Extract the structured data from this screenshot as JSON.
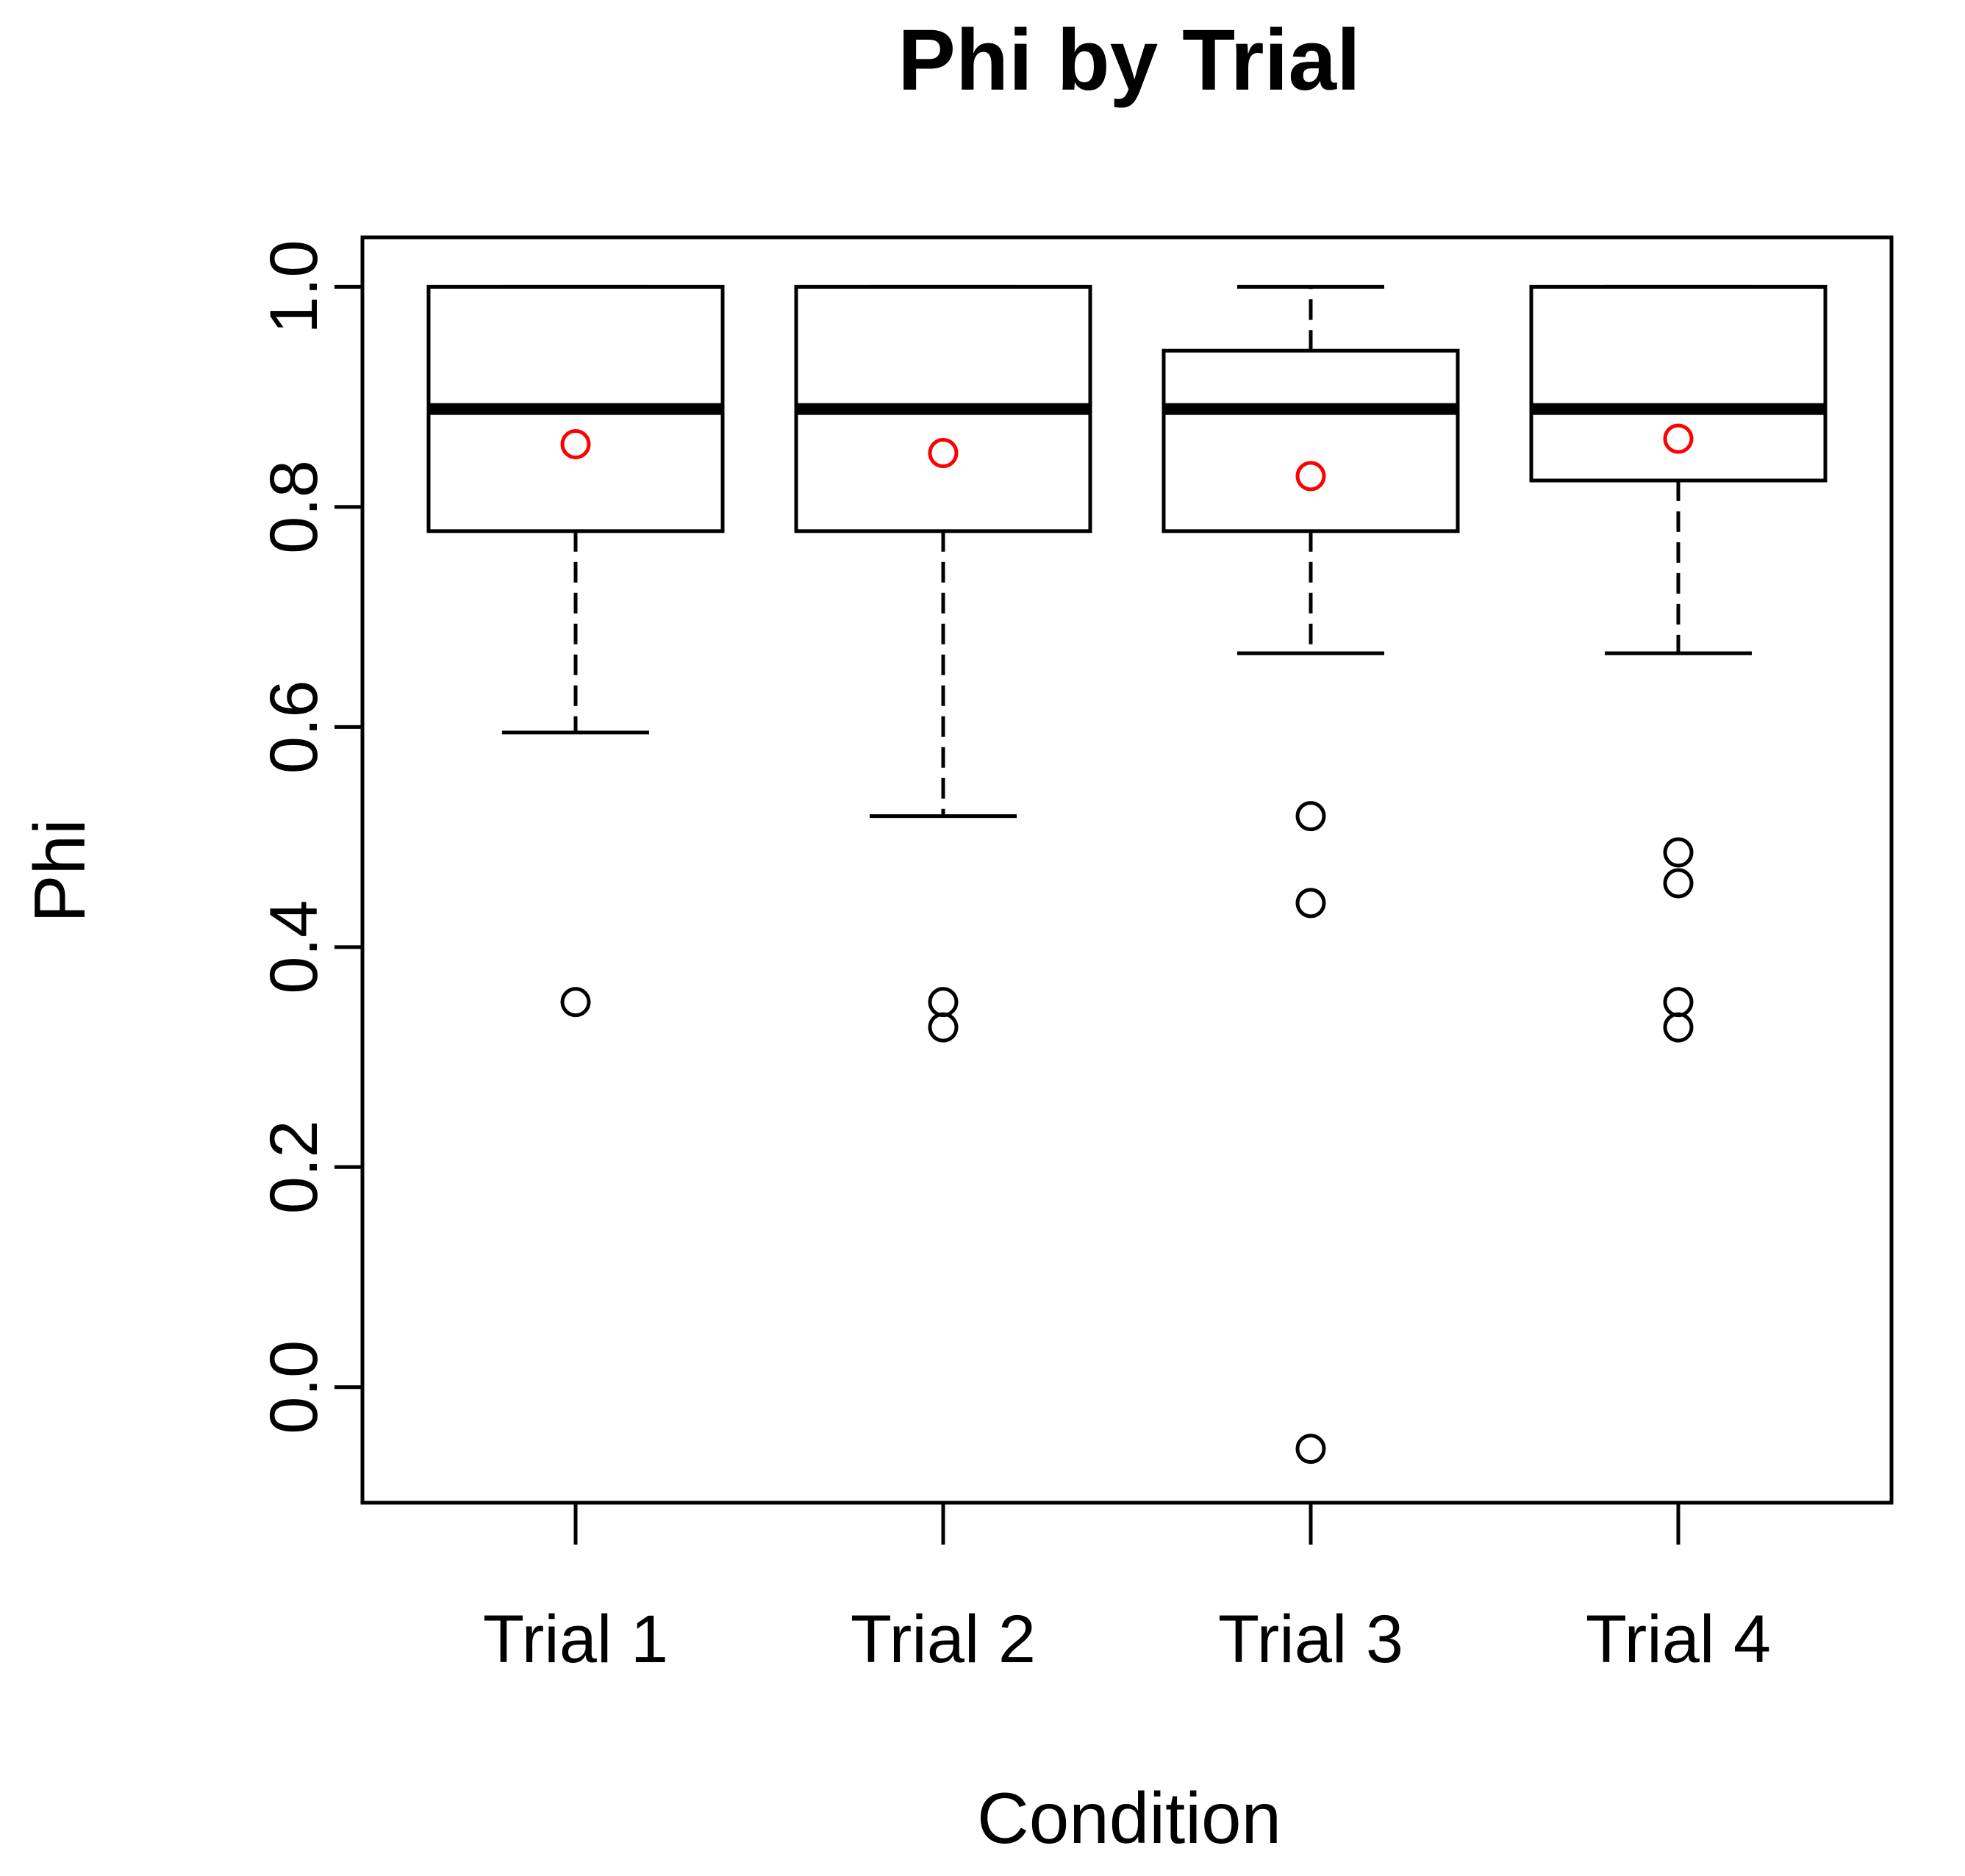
{
  "chart_data": {
    "type": "boxplot",
    "title": "Phi by Trial",
    "xlabel": "Condition",
    "ylabel": "Phi",
    "ylim": [
      -0.105,
      1.045
    ],
    "yticks": [
      0.0,
      0.2,
      0.4,
      0.6,
      0.8,
      1.0
    ],
    "ytick_labels": [
      "0.0",
      "0.2",
      "0.4",
      "0.6",
      "0.8",
      "1.0"
    ],
    "categories": [
      "Trial 1",
      "Trial 2",
      "Trial 3",
      "Trial 4"
    ],
    "boxes": [
      {
        "category": "Trial 1",
        "whisker_low": 0.595,
        "q1": 0.778,
        "median": 0.889,
        "q3": 1.0,
        "whisker_high": 1.0,
        "mean": 0.857,
        "outliers": [
          0.35
        ]
      },
      {
        "category": "Trial 2",
        "whisker_low": 0.519,
        "q1": 0.778,
        "median": 0.889,
        "q3": 1.0,
        "whisker_high": 1.0,
        "mean": 0.849,
        "outliers": [
          0.35,
          0.327
        ]
      },
      {
        "category": "Trial 3",
        "whisker_low": 0.667,
        "q1": 0.778,
        "median": 0.889,
        "q3": 0.942,
        "whisker_high": 1.0,
        "mean": 0.828,
        "outliers": [
          0.519,
          0.44,
          -0.056
        ]
      },
      {
        "category": "Trial 4",
        "whisker_low": 0.667,
        "q1": 0.824,
        "median": 0.889,
        "q3": 1.0,
        "whisker_high": 1.0,
        "mean": 0.862,
        "outliers": [
          0.486,
          0.458,
          0.35,
          0.327
        ]
      }
    ],
    "colors": {
      "box": "#000000",
      "outlier": "#000000",
      "mean": "#ff0000"
    }
  }
}
